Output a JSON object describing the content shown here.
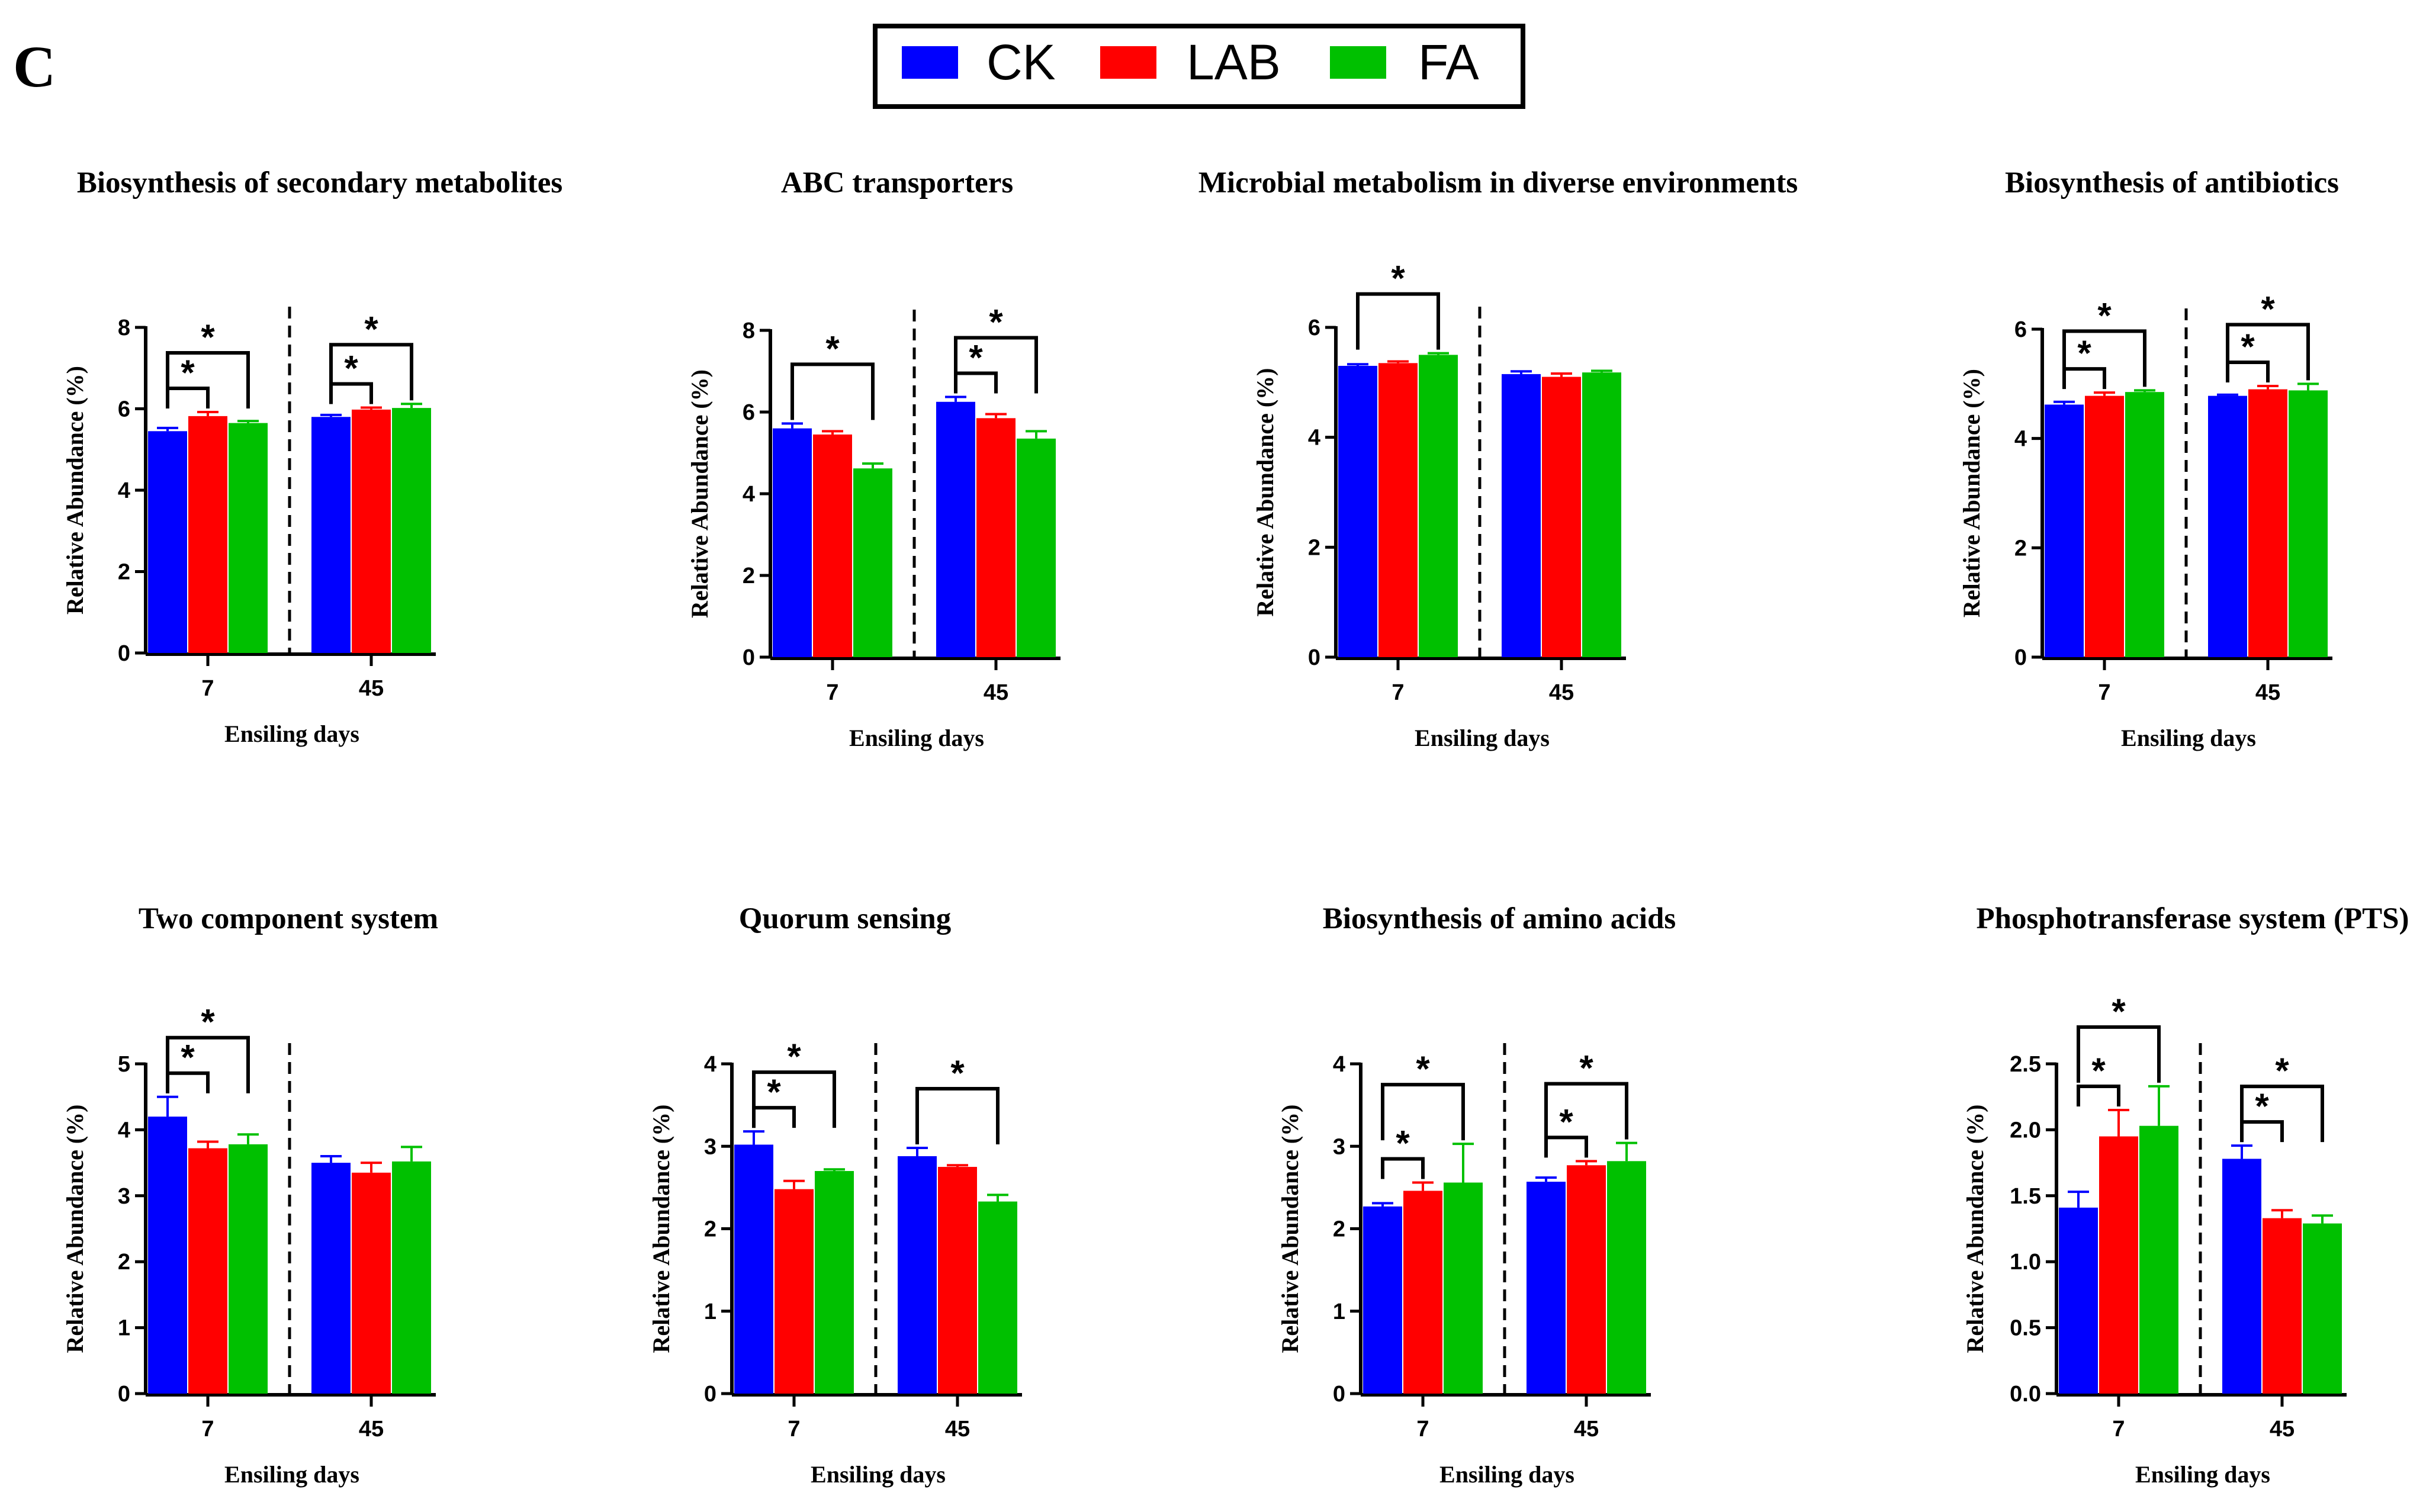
{
  "panel_label": "C",
  "legend": {
    "items": [
      {
        "label": "CK",
        "color": "#0000FF"
      },
      {
        "label": "LAB",
        "color": "#FF0000"
      },
      {
        "label": "FA",
        "color": "#00C000"
      }
    ]
  },
  "chart_data": [
    {
      "type": "bar",
      "title": "Biosynthesis of secondary metabolites",
      "xlabel": "Ensiling days",
      "ylabel": "Relative Abundance (%)",
      "categories": [
        "7",
        "45"
      ],
      "ylim": [
        0,
        8
      ],
      "yticks": [
        0,
        2,
        4,
        6,
        8
      ],
      "ytick_labels": [
        "0",
        "2",
        "4",
        "6",
        "8"
      ],
      "series": [
        {
          "name": "CK",
          "values": [
            5.45,
            5.8
          ],
          "errors": [
            0.08,
            0.05
          ]
        },
        {
          "name": "LAB",
          "values": [
            5.82,
            5.98
          ],
          "errors": [
            0.1,
            0.05
          ]
        },
        {
          "name": "FA",
          "values": [
            5.65,
            6.02
          ],
          "errors": [
            0.05,
            0.1
          ]
        }
      ],
      "significance": [
        {
          "group": 0,
          "from": 0,
          "to": 1,
          "label": "*"
        },
        {
          "group": 0,
          "from": 0,
          "to": 2,
          "label": "*"
        },
        {
          "group": 1,
          "from": 0,
          "to": 1,
          "label": "*"
        },
        {
          "group": 1,
          "from": 0,
          "to": 2,
          "label": "*"
        }
      ]
    },
    {
      "type": "bar",
      "title": "ABC transporters",
      "xlabel": "Ensiling days",
      "ylabel": "Relative Abundance (%)",
      "categories": [
        "7",
        "45"
      ],
      "ylim": [
        0,
        8
      ],
      "yticks": [
        0,
        2,
        4,
        6,
        8
      ],
      "ytick_labels": [
        "0",
        "2",
        "4",
        "6",
        "8"
      ],
      "series": [
        {
          "name": "CK",
          "values": [
            5.6,
            6.25
          ],
          "errors": [
            0.12,
            0.12
          ]
        },
        {
          "name": "LAB",
          "values": [
            5.45,
            5.85
          ],
          "errors": [
            0.08,
            0.1
          ]
        },
        {
          "name": "FA",
          "values": [
            4.62,
            5.35
          ],
          "errors": [
            0.12,
            0.18
          ]
        }
      ],
      "significance": [
        {
          "group": 0,
          "from": 0,
          "to": 2,
          "label": "*"
        },
        {
          "group": 1,
          "from": 0,
          "to": 1,
          "label": "*"
        },
        {
          "group": 1,
          "from": 0,
          "to": 2,
          "label": "*"
        }
      ]
    },
    {
      "type": "bar",
      "title": "Microbial metabolism in diverse environments",
      "xlabel": "Ensiling days",
      "ylabel": "Relative Abundance (%)",
      "categories": [
        "7",
        "45"
      ],
      "ylim": [
        0,
        6
      ],
      "yticks": [
        0,
        2,
        4,
        6
      ],
      "ytick_labels": [
        "0",
        "2",
        "4",
        "6"
      ],
      "series": [
        {
          "name": "CK",
          "values": [
            5.3,
            5.15
          ],
          "errors": [
            0.03,
            0.05
          ]
        },
        {
          "name": "LAB",
          "values": [
            5.35,
            5.1
          ],
          "errors": [
            0.03,
            0.06
          ]
        },
        {
          "name": "FA",
          "values": [
            5.5,
            5.18
          ],
          "errors": [
            0.03,
            0.03
          ]
        }
      ],
      "significance": [
        {
          "group": 0,
          "from": 0,
          "to": 2,
          "label": "*"
        }
      ]
    },
    {
      "type": "bar",
      "title": "Biosynthesis of antibiotics",
      "xlabel": "Ensiling days",
      "ylabel": "Relative Abundance (%)",
      "categories": [
        "7",
        "45"
      ],
      "ylim": [
        0,
        6
      ],
      "yticks": [
        0,
        2,
        4,
        6
      ],
      "ytick_labels": [
        "0",
        "2",
        "4",
        "6"
      ],
      "series": [
        {
          "name": "CK",
          "values": [
            4.62,
            4.78
          ],
          "errors": [
            0.05,
            0.02
          ]
        },
        {
          "name": "LAB",
          "values": [
            4.78,
            4.9
          ],
          "errors": [
            0.06,
            0.06
          ]
        },
        {
          "name": "FA",
          "values": [
            4.85,
            4.88
          ],
          "errors": [
            0.03,
            0.12
          ]
        }
      ],
      "significance": [
        {
          "group": 0,
          "from": 0,
          "to": 1,
          "label": "*"
        },
        {
          "group": 0,
          "from": 0,
          "to": 2,
          "label": "*"
        },
        {
          "group": 1,
          "from": 0,
          "to": 1,
          "label": "*"
        },
        {
          "group": 1,
          "from": 0,
          "to": 2,
          "label": "*"
        }
      ]
    },
    {
      "type": "bar",
      "title": "Two component system",
      "xlabel": "Ensiling days",
      "ylabel": "Relative Abundance (%)",
      "categories": [
        "7",
        "45"
      ],
      "ylim": [
        0,
        5
      ],
      "yticks": [
        0,
        1,
        2,
        3,
        4,
        5
      ],
      "ytick_labels": [
        "0",
        "1",
        "2",
        "3",
        "4",
        "5"
      ],
      "series": [
        {
          "name": "CK",
          "values": [
            4.2,
            3.5
          ],
          "errors": [
            0.3,
            0.1
          ]
        },
        {
          "name": "LAB",
          "values": [
            3.72,
            3.35
          ],
          "errors": [
            0.1,
            0.15
          ]
        },
        {
          "name": "FA",
          "values": [
            3.78,
            3.52
          ],
          "errors": [
            0.15,
            0.22
          ]
        }
      ],
      "significance": [
        {
          "group": 0,
          "from": 0,
          "to": 1,
          "label": "*"
        },
        {
          "group": 0,
          "from": 0,
          "to": 2,
          "label": "*"
        }
      ]
    },
    {
      "type": "bar",
      "title": "Quorum sensing",
      "xlabel": "Ensiling days",
      "ylabel": "Relative Abundance (%)",
      "categories": [
        "7",
        "45"
      ],
      "ylim": [
        0,
        4
      ],
      "yticks": [
        0,
        1,
        2,
        3,
        4
      ],
      "ytick_labels": [
        "0",
        "1",
        "2",
        "3",
        "4"
      ],
      "series": [
        {
          "name": "CK",
          "values": [
            3.02,
            2.88
          ],
          "errors": [
            0.16,
            0.1
          ]
        },
        {
          "name": "LAB",
          "values": [
            2.48,
            2.75
          ],
          "errors": [
            0.1,
            0.02
          ]
        },
        {
          "name": "FA",
          "values": [
            2.7,
            2.33
          ],
          "errors": [
            0.02,
            0.08
          ]
        }
      ],
      "significance": [
        {
          "group": 0,
          "from": 0,
          "to": 1,
          "label": "*"
        },
        {
          "group": 0,
          "from": 0,
          "to": 2,
          "label": "*"
        },
        {
          "group": 1,
          "from": 0,
          "to": 2,
          "label": "*"
        }
      ]
    },
    {
      "type": "bar",
      "title": "Biosynthesis of amino acids",
      "xlabel": "Ensiling days",
      "ylabel": "Relative Abundance (%)",
      "categories": [
        "7",
        "45"
      ],
      "ylim": [
        0,
        4
      ],
      "yticks": [
        0,
        1,
        2,
        3,
        4
      ],
      "ytick_labels": [
        "0",
        "1",
        "2",
        "3",
        "4"
      ],
      "series": [
        {
          "name": "CK",
          "values": [
            2.27,
            2.57
          ],
          "errors": [
            0.04,
            0.05
          ]
        },
        {
          "name": "LAB",
          "values": [
            2.46,
            2.77
          ],
          "errors": [
            0.1,
            0.05
          ]
        },
        {
          "name": "FA",
          "values": [
            2.56,
            2.82
          ],
          "errors": [
            0.47,
            0.22
          ]
        }
      ],
      "significance": [
        {
          "group": 0,
          "from": 0,
          "to": 1,
          "label": "*"
        },
        {
          "group": 0,
          "from": 0,
          "to": 2,
          "label": "*"
        },
        {
          "group": 1,
          "from": 0,
          "to": 1,
          "label": "*"
        },
        {
          "group": 1,
          "from": 0,
          "to": 2,
          "label": "*"
        }
      ]
    },
    {
      "type": "bar",
      "title": "Phosphotransferase system (PTS)",
      "xlabel": "Ensiling days",
      "ylabel": "Relative Abundance (%)",
      "categories": [
        "7",
        "45"
      ],
      "ylim": [
        0,
        2.5
      ],
      "yticks": [
        0,
        0.5,
        1,
        1.5,
        2,
        2.5
      ],
      "ytick_labels": [
        "0.0",
        "0.5",
        "1.0",
        "1.5",
        "2.0",
        "2.5"
      ],
      "series": [
        {
          "name": "CK",
          "values": [
            1.41,
            1.78
          ],
          "errors": [
            0.12,
            0.1
          ]
        },
        {
          "name": "LAB",
          "values": [
            1.95,
            1.33
          ],
          "errors": [
            0.2,
            0.06
          ]
        },
        {
          "name": "FA",
          "values": [
            2.03,
            1.29
          ],
          "errors": [
            0.3,
            0.06
          ]
        }
      ],
      "significance": [
        {
          "group": 0,
          "from": 0,
          "to": 1,
          "label": "*"
        },
        {
          "group": 0,
          "from": 0,
          "to": 2,
          "label": "*"
        },
        {
          "group": 1,
          "from": 0,
          "to": 1,
          "label": "*"
        },
        {
          "group": 1,
          "from": 0,
          "to": 2,
          "label": "*"
        }
      ]
    }
  ]
}
